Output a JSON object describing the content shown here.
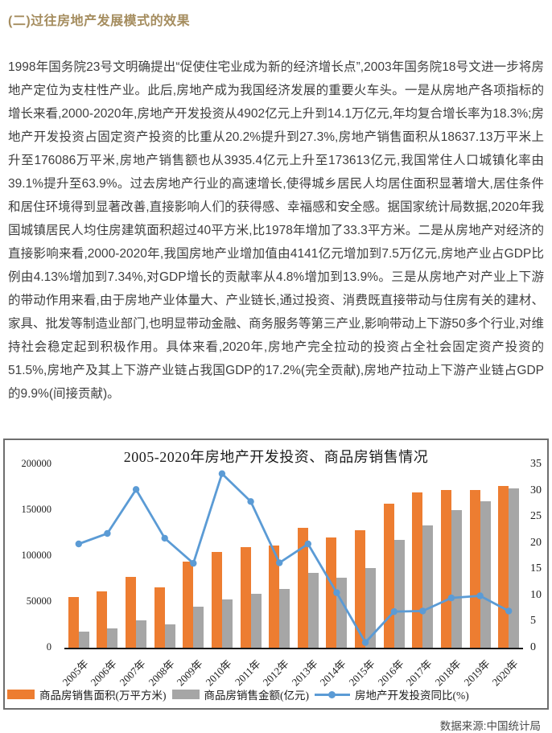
{
  "page": {
    "section_title": "(二)过往房地产发展模式的效果",
    "paragraph": "1998年国务院23号文明确提出“促使住宅业成为新的经济增长点”,2003年国务院18号文进一步将房地产定位为支柱性产业。此后,房地产成为我国经济发展的重要火车头。一是从房地产各项指标的增长来看,2000-2020年,房地产开发投资从4902亿元上升到14.1万亿元,年均复合增长率为18.3%;房地产开发投资占固定资产投资的比重从20.2%提升到27.3%,房地产销售面积从18637.13万平米上升至176086万平米,房地产销售额也从3935.4亿元上升至173613亿元,我国常住人口城镇化率由39.1%提升至63.9%。过去房地产行业的高速增长,使得城乡居民人均居住面积显著增大,居住条件和居住环境得到显著改善,直接影响人们的获得感、幸福感和安全感。据国家统计局数据,2020年我国城镇居民人均住房建筑面积超过40平方米,比1978年增加了33.3平方米。二是从房地产对经济的直接影响来看,2000-2020年,我国房地产业增加值由4141亿元增加到7.5万亿元,房地产业占GDP比例由4.13%增加到7.34%,对GDP增长的贡献率从4.8%增加到13.9%。三是从房地产对产业上下游的带动作用来看,由于房地产业体量大、产业链长,通过投资、消费既直接带动与住房有关的建材、家具、批发等制造业部门,也明显带动金融、商务服务等第三产业,影响带动上下游50多个行业,对维持社会稳定起到积极作用。具体来看,2020年,房地产完全拉动的投资占全社会固定资产投资的51.5%,房地产及其上下游产业链占我国GDP的17.2%(完全贡献),房地产拉动上下游产业链占GDP的9.9%(间接贡献)。"
  },
  "colors": {
    "heading": "#a58d5f",
    "body_text": "#3e3e3e",
    "bar_sales_area": "#ED7D31",
    "bar_sales_value": "#A6A6A6",
    "line_investment_growth": "#5B9BD5",
    "chart_border": "#6e6e6e"
  },
  "chart_data": {
    "type": "bar",
    "title": "2005-2020年房地产开发投资、商品房销售情况",
    "categories": [
      "2005年",
      "2006年",
      "2007年",
      "2008年",
      "2009年",
      "2010年",
      "2011年",
      "2012年",
      "2013年",
      "2014年",
      "2015年",
      "2016年",
      "2017年",
      "2018年",
      "2019年",
      "2020年"
    ],
    "series": [
      {
        "key": "sales-area",
        "name": "商品房销售面积(万平方米)",
        "type": "bar",
        "axis": "left",
        "color": "#ED7D31",
        "values": [
          55486,
          61857,
          77355,
          65970,
          93713,
          104765,
          109946,
          111304,
          130551,
          120649,
          128495,
          157349,
          169408,
          171654,
          171558,
          176086
        ]
      },
      {
        "key": "sales-value",
        "name": "商品房销售金额(亿元)",
        "type": "bar",
        "axis": "left",
        "color": "#A6A6A6",
        "values": [
          17576,
          20826,
          29889,
          25068,
          44355,
          52721,
          59119,
          64456,
          81428,
          76292,
          87281,
          117627,
          133701,
          149973,
          159725,
          173613
        ]
      },
      {
        "key": "investment-growth",
        "name": "房地产开发投资同比(%)",
        "type": "line",
        "axis": "right",
        "color": "#5B9BD5",
        "values": [
          19.8,
          21.8,
          30.2,
          20.9,
          16.1,
          33.2,
          27.9,
          16.2,
          19.8,
          10.5,
          1.0,
          6.9,
          7.0,
          9.5,
          9.9,
          7.0
        ]
      }
    ],
    "left_axis": {
      "min": 0,
      "max": 200000,
      "step": 50000,
      "ticks": [
        0,
        50000,
        100000,
        150000,
        200000
      ]
    },
    "right_axis": {
      "min": 0,
      "max": 35,
      "step": 5,
      "ticks": [
        0,
        5,
        10,
        15,
        20,
        25,
        30,
        35
      ]
    },
    "grid": false,
    "legend_position": "bottom",
    "source": "数据来源:中国统计局"
  }
}
